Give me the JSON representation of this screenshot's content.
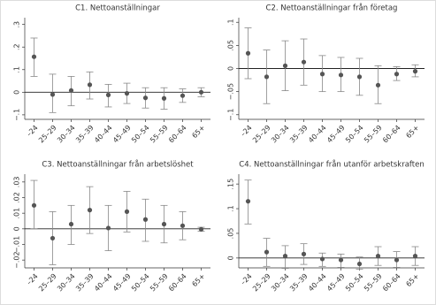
{
  "chart_data": [
    {
      "type": "errorbar",
      "title": "C1. Nettoanställningar",
      "categories": [
        "–24",
        "25–29",
        "30–34",
        "35–39",
        "40–44",
        "45–49",
        "50–54",
        "55–59",
        "60–64",
        "65+"
      ],
      "values": [
        0.157,
        -0.01,
        0.008,
        0.033,
        -0.012,
        -0.005,
        -0.025,
        -0.027,
        -0.015,
        0.0
      ],
      "lower": [
        0.07,
        -0.09,
        -0.06,
        -0.03,
        -0.065,
        -0.05,
        -0.07,
        -0.075,
        -0.045,
        -0.02
      ],
      "upper": [
        0.24,
        0.08,
        0.07,
        0.09,
        0.035,
        0.04,
        0.02,
        0.02,
        0.015,
        0.02
      ],
      "ylim": [
        -0.12,
        0.33
      ],
      "yticks": [
        {
          "value": -0.1,
          "label": "−.1"
        },
        0,
        {
          "value": 0.1,
          "label": ".1"
        },
        {
          "value": 0.2,
          "label": ".2"
        },
        {
          "value": 0.3,
          "label": ".3"
        }
      ],
      "color": "#555555"
    },
    {
      "type": "errorbar",
      "title": "C2. Nettoanställningar från företag",
      "categories": [
        "–24",
        "25–29",
        "30–34",
        "35–39",
        "40–44",
        "45–49",
        "50–54",
        "55–59",
        "60–64",
        "65+"
      ],
      "values": [
        0.033,
        -0.018,
        0.006,
        0.014,
        -0.012,
        -0.014,
        -0.018,
        -0.036,
        -0.012,
        -0.006
      ],
      "lower": [
        -0.022,
        -0.076,
        -0.048,
        -0.036,
        -0.05,
        -0.05,
        -0.058,
        -0.076,
        -0.026,
        -0.018
      ],
      "upper": [
        0.088,
        0.04,
        0.06,
        0.064,
        0.028,
        0.024,
        0.022,
        0.006,
        0.004,
        0.008
      ],
      "ylim": [
        -0.11,
        0.11
      ],
      "yticks": [
        {
          "value": -0.1,
          "label": "−.1"
        },
        {
          "value": -0.05,
          "label": "−.05"
        },
        0,
        {
          "value": 0.05,
          "label": ".05"
        },
        {
          "value": 0.1,
          "label": ".1"
        }
      ],
      "color": "#555555"
    },
    {
      "type": "errorbar",
      "title": "C3. Nettoanställningar från arbetslöshet",
      "categories": [
        "–24",
        "25–29",
        "30–34",
        "35–39",
        "40–44",
        "45–49",
        "50–54",
        "55–59",
        "60–64",
        "65+"
      ],
      "values": [
        0.015,
        -0.006,
        0.003,
        0.012,
        0.0005,
        0.011,
        0.006,
        0.003,
        0.002,
        -0.0003
      ],
      "lower": [
        0.0,
        -0.023,
        -0.01,
        -0.003,
        -0.014,
        -0.002,
        -0.008,
        -0.009,
        -0.007,
        -0.0015
      ],
      "upper": [
        0.031,
        0.011,
        0.015,
        0.027,
        0.015,
        0.024,
        0.019,
        0.015,
        0.011,
        0.001
      ],
      "ylim": [
        -0.025,
        0.035
      ],
      "yticks": [
        {
          "value": -0.02,
          "label": "−.02"
        },
        {
          "value": -0.01,
          "label": "−.01"
        },
        0,
        {
          "value": 0.01,
          "label": ".01"
        },
        {
          "value": 0.02,
          "label": ".02"
        },
        {
          "value": 0.03,
          "label": ".03"
        }
      ],
      "color": "#555555"
    },
    {
      "type": "errorbar",
      "title": "C4. Nettoanställningar från utanför arbetskraften",
      "categories": [
        "–24",
        "25–29",
        "30–34",
        "35–39",
        "40–44",
        "45–49",
        "50–54",
        "55–59",
        "60–64",
        "65+"
      ],
      "values": [
        0.115,
        0.012,
        0.004,
        0.008,
        -0.002,
        -0.004,
        -0.012,
        0.004,
        -0.004,
        0.004
      ],
      "lower": [
        0.069,
        -0.017,
        -0.021,
        -0.013,
        -0.017,
        -0.019,
        -0.023,
        -0.015,
        -0.019,
        -0.015
      ],
      "upper": [
        0.158,
        0.04,
        0.025,
        0.029,
        0.01,
        0.008,
        0.002,
        0.023,
        0.013,
        0.023
      ],
      "ylim": [
        -0.02,
        0.17
      ],
      "yticks": [
        0,
        {
          "value": 0.05,
          "label": ".05"
        },
        {
          "value": 0.1,
          "label": ".1"
        },
        {
          "value": 0.15,
          "label": ".15"
        }
      ],
      "color": "#555555"
    }
  ]
}
